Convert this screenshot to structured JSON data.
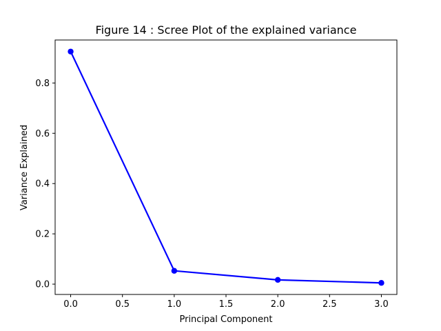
{
  "chart_data": {
    "type": "line",
    "title": "Figure 14 : Scree Plot of the explained variance",
    "xlabel": "Principal Component",
    "ylabel": "Variance Explained",
    "x": [
      0,
      1,
      2,
      3
    ],
    "series": [
      {
        "values": [
          0.925,
          0.053,
          0.017,
          0.005
        ],
        "color": "#0000ff",
        "marker": "circle"
      }
    ],
    "xlim": [
      -0.15,
      3.15
    ],
    "ylim": [
      -0.041,
      0.971
    ],
    "xticks": [
      0.0,
      0.5,
      1.0,
      1.5,
      2.0,
      2.5,
      3.0
    ],
    "xtick_labels": [
      "0.0",
      "0.5",
      "1.0",
      "1.5",
      "2.0",
      "2.5",
      "3.0"
    ],
    "yticks": [
      0.0,
      0.2,
      0.4,
      0.6,
      0.8
    ],
    "ytick_labels": [
      "0.0",
      "0.2",
      "0.4",
      "0.6",
      "0.8"
    ],
    "grid": false,
    "legend": false
  }
}
